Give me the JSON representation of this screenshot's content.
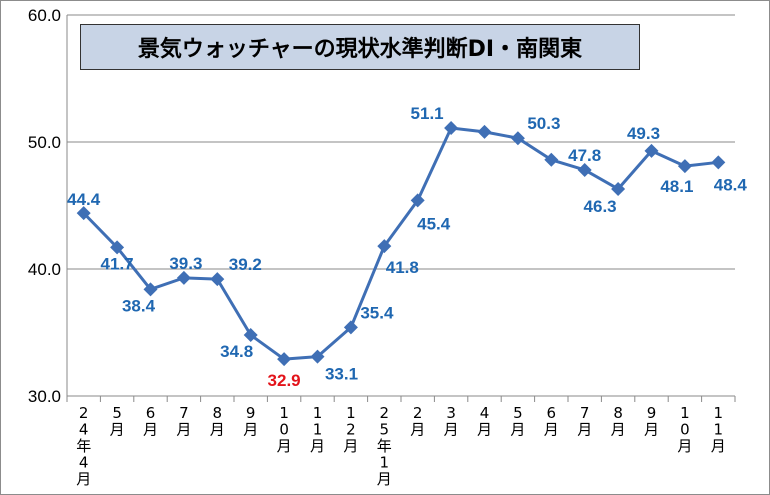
{
  "chart_data": {
    "type": "line",
    "title": "景気ウォッチャーの現状水準判断DI・南関東",
    "xlabel": "",
    "ylabel": "",
    "categories": [
      "24年4月",
      "5月",
      "6月",
      "7月",
      "8月",
      "9月",
      "10月",
      "11月",
      "12月",
      "25年1月",
      "2月",
      "3月",
      "4月",
      "5月",
      "6月",
      "7月",
      "8月",
      "9月",
      "10月",
      "11月"
    ],
    "values": [
      44.4,
      41.7,
      38.4,
      39.3,
      39.2,
      34.8,
      32.9,
      33.1,
      35.4,
      41.8,
      45.4,
      51.1,
      50.8,
      50.3,
      48.6,
      47.8,
      46.3,
      49.3,
      48.1,
      48.4
    ],
    "data_labels": [
      "44.4",
      "41.7",
      "38.4",
      "39.3",
      "39.2",
      "34.8",
      "32.9",
      "33.1",
      "35.4",
      "41.8",
      "45.4",
      "51.1",
      "",
      "50.3",
      "",
      "47.8",
      "46.3",
      "49.3",
      "48.1",
      "48.4"
    ],
    "highlight_label_index": 6,
    "ylim": [
      30,
      60
    ],
    "yticks": [
      "30.0",
      "40.0",
      "50.0",
      "60.0"
    ],
    "grid": true,
    "legend": "none",
    "colors": {
      "series": "#3f6fb5",
      "label": "#1f67b1",
      "highlight": "#e3141b",
      "title_bg": "#c8d4e6"
    }
  }
}
